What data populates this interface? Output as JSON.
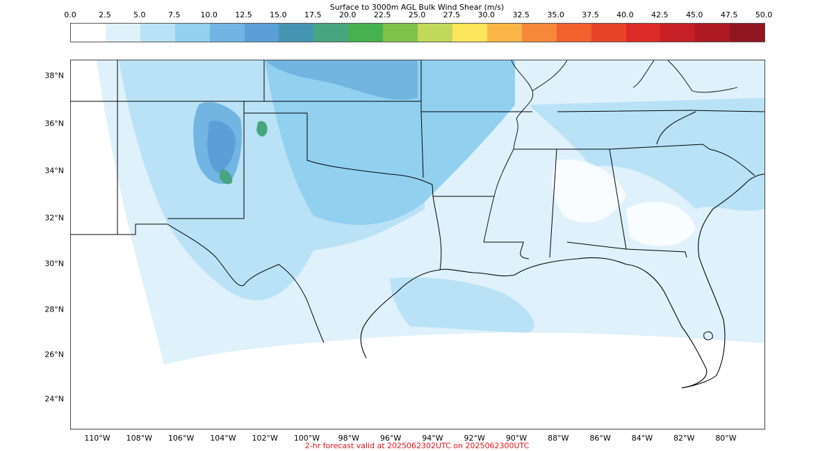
{
  "colorbar": {
    "title": "Surface to 3000m AGL Bulk Wind Shear (m/s)",
    "ticks": [
      "0.0",
      "2.5",
      "5.0",
      "7.5",
      "10.0",
      "12.5",
      "15.0",
      "17.5",
      "20.0",
      "22.5",
      "25.0",
      "27.5",
      "30.0",
      "32.5",
      "35.0",
      "37.5",
      "40.0",
      "42.5",
      "45.0",
      "47.5",
      "50.0"
    ],
    "colors": [
      "#ffffff",
      "#dff1fb",
      "#b9e2f6",
      "#92d0f0",
      "#72b5e2",
      "#5a9fd8",
      "#4595b2",
      "#47a67f",
      "#46b24f",
      "#7fc24a",
      "#c1d85b",
      "#fbe55a",
      "#f9b647",
      "#f6883a",
      "#f2602e",
      "#e84428",
      "#dc2a27",
      "#c61f25",
      "#ad1a22",
      "#92161f"
    ]
  },
  "map": {
    "lat_labels": [
      "38°N",
      "36°N",
      "34°N",
      "32°N",
      "30°N",
      "28°N",
      "26°N",
      "24°N"
    ],
    "lon_labels": [
      "110°W",
      "108°W",
      "106°W",
      "104°W",
      "102°W",
      "100°W",
      "98°W",
      "96°W",
      "94°W",
      "92°W",
      "90°W",
      "88°W",
      "86°W",
      "84°W",
      "82°W",
      "80°W"
    ]
  },
  "footer": {
    "text": "2-hr forecast valid at 2025062302UTC on 2025062300UTC"
  }
}
